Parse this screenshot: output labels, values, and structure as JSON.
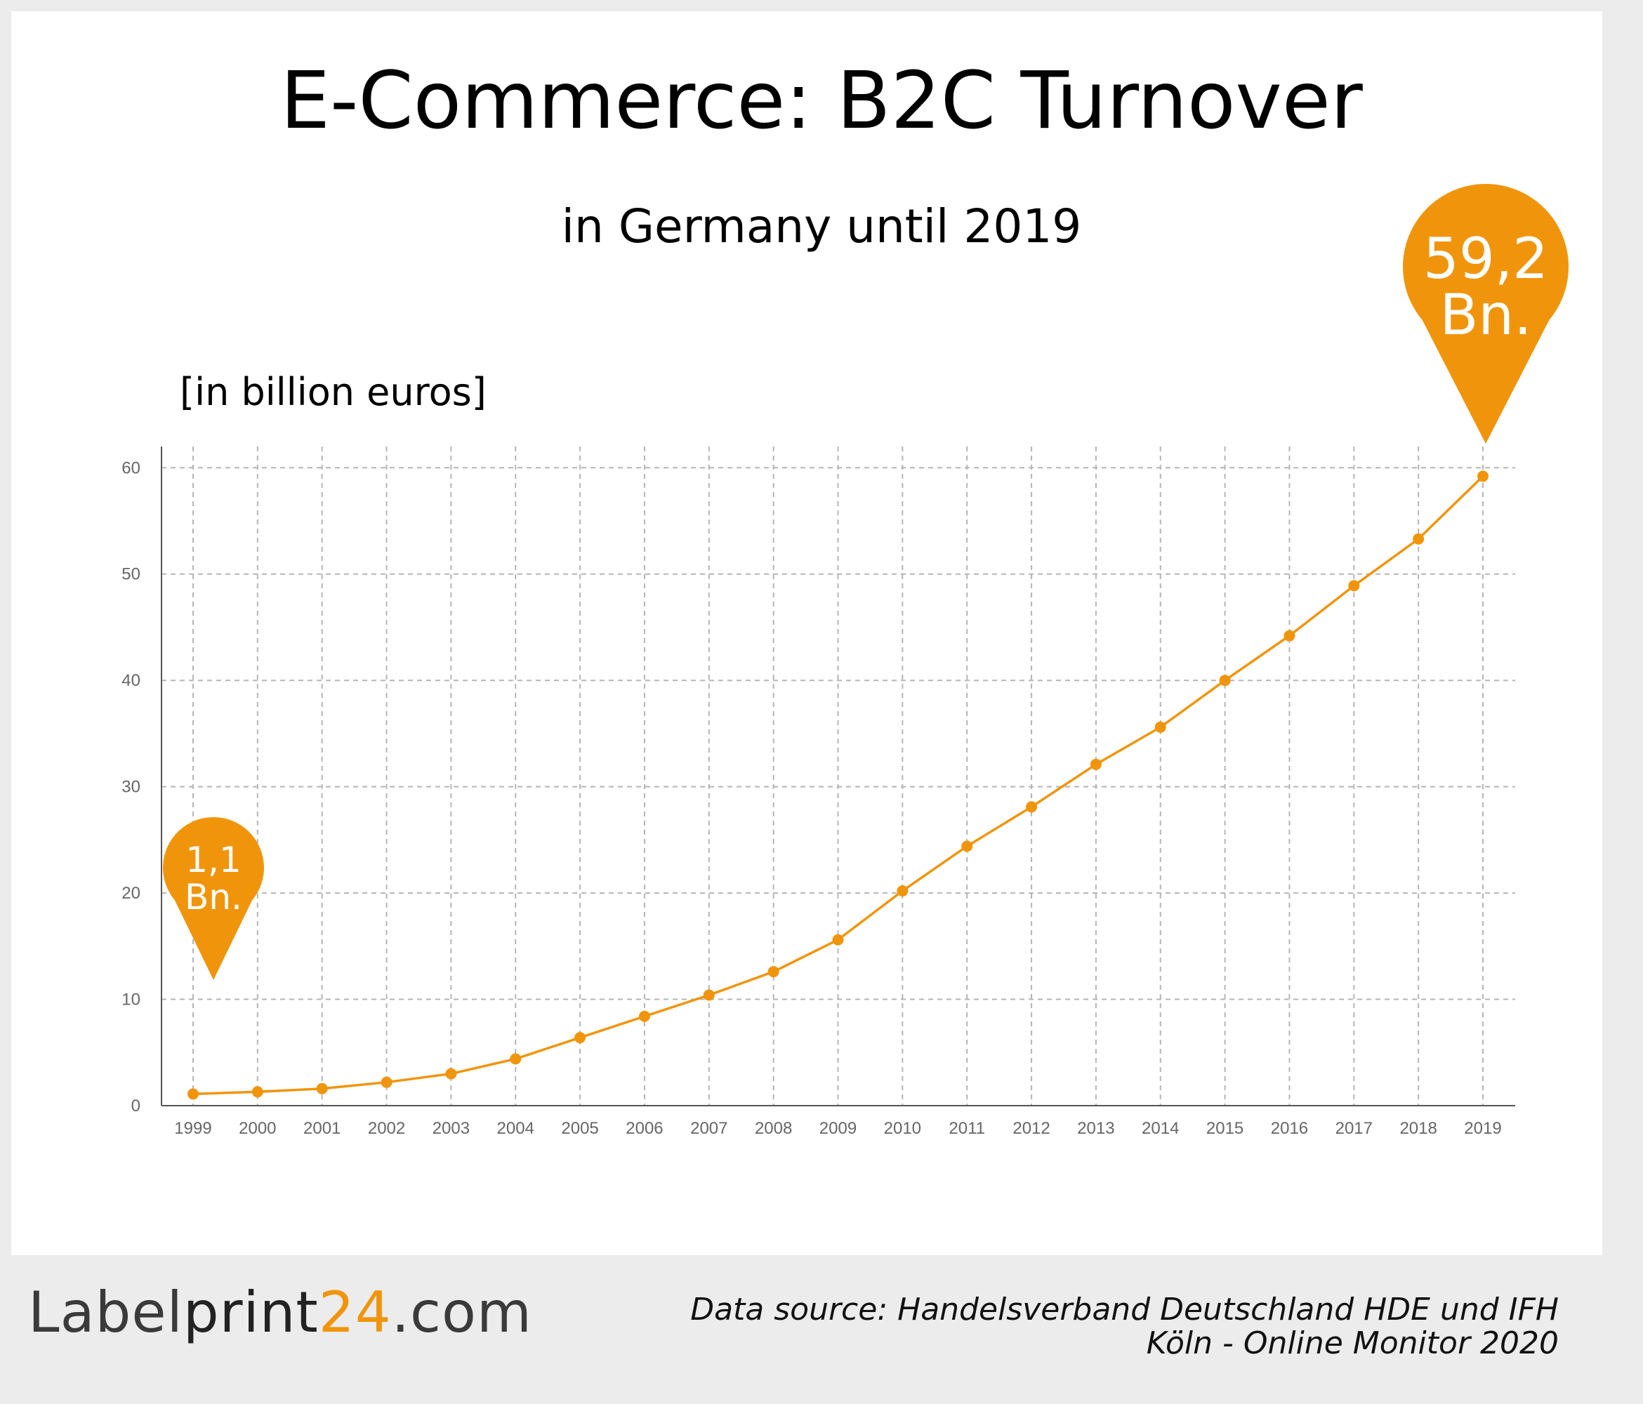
{
  "chart_data": {
    "type": "line",
    "title": "E-Commerce: B2C Turnover",
    "subtitle": "in Germany until 2019",
    "ylabel": "[in billion euros]",
    "xlabel": "",
    "categories": [
      "1999",
      "2000",
      "2001",
      "2002",
      "2003",
      "2004",
      "2005",
      "2006",
      "2007",
      "2008",
      "2009",
      "2010",
      "2011",
      "2012",
      "2013",
      "2014",
      "2015",
      "2016",
      "2017",
      "2018",
      "2019"
    ],
    "values": [
      1.1,
      1.3,
      1.6,
      2.2,
      3.0,
      4.4,
      6.4,
      8.4,
      10.4,
      12.6,
      15.6,
      20.2,
      24.4,
      28.1,
      32.1,
      35.6,
      40.0,
      44.2,
      48.9,
      53.3,
      59.2
    ],
    "yticks": [
      0,
      10,
      20,
      30,
      40,
      50,
      60
    ],
    "ylim": [
      0,
      62
    ],
    "grid": true,
    "color": "#f0950b",
    "annotations": [
      {
        "category": "1999",
        "line1": "1,1",
        "line2": "Bn."
      },
      {
        "category": "2019",
        "line1": "59,2",
        "line2": "Bn."
      }
    ]
  },
  "footer": {
    "logo_part1": "Label",
    "logo_part2": "print",
    "logo_part3": "24",
    "logo_part4": ".com",
    "source_line1": "Data source: Handelsverband Deutschland HDE und IFH",
    "source_line2": "Köln - Online Monitor 2020"
  }
}
